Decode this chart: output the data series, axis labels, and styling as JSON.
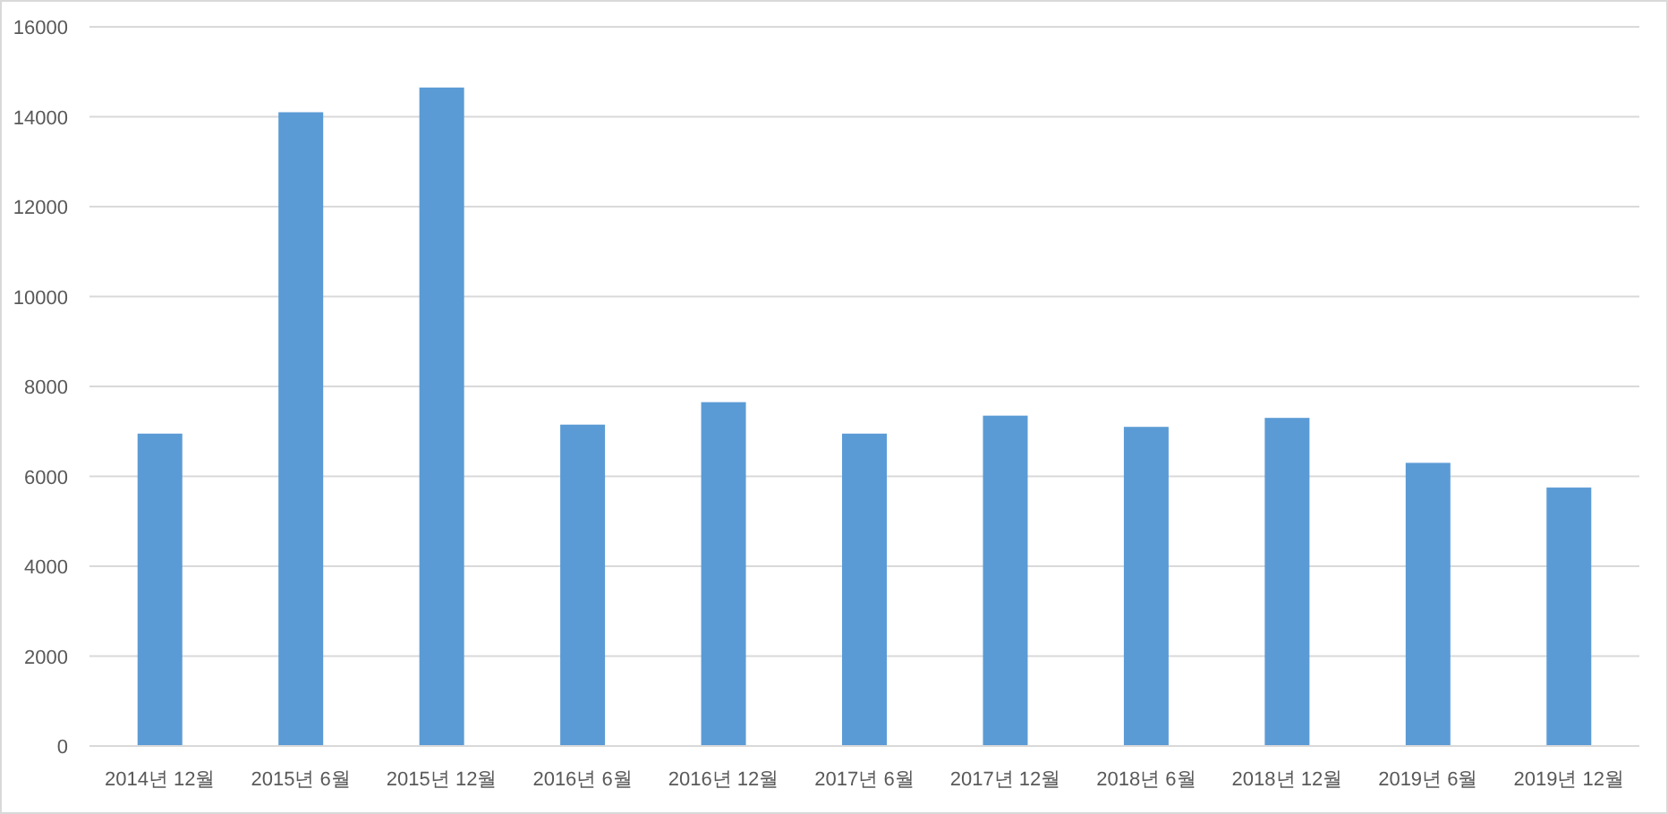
{
  "chart_data": {
    "type": "bar",
    "categories": [
      "2014년 12월",
      "2015년 6월",
      "2015년 12월",
      "2016년 6월",
      "2016년 12월",
      "2017년 6월",
      "2017년 12월",
      "2018년 6월",
      "2018년 12월",
      "2019년 6월",
      "2019년 12월"
    ],
    "values": [
      6950,
      14100,
      14650,
      7150,
      7650,
      6950,
      7350,
      7100,
      7300,
      6300,
      5750
    ],
    "color": "#5b9bd5",
    "ylim": [
      0,
      16000
    ],
    "yticks": [
      0,
      2000,
      4000,
      6000,
      8000,
      10000,
      12000,
      14000,
      16000
    ],
    "grid": "y"
  }
}
